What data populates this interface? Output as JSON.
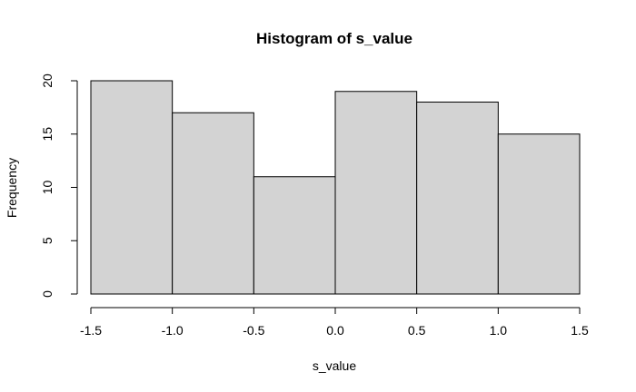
{
  "chart_data": {
    "type": "bar",
    "title": "Histogram of s_value",
    "xlabel": "s_value",
    "ylabel": "Frequency",
    "bins": [
      {
        "x0": -1.5,
        "x1": -1.0,
        "count": 20
      },
      {
        "x0": -1.0,
        "x1": -0.5,
        "count": 17
      },
      {
        "x0": -0.5,
        "x1": 0.0,
        "count": 11
      },
      {
        "x0": 0.0,
        "x1": 0.5,
        "count": 19
      },
      {
        "x0": 0.5,
        "x1": 1.0,
        "count": 18
      },
      {
        "x0": 1.0,
        "x1": 1.5,
        "count": 15
      }
    ],
    "xlim": [
      -1.5,
      1.5
    ],
    "ylim": [
      0,
      20
    ],
    "xticks": [
      -1.5,
      -1.0,
      -0.5,
      0.0,
      0.5,
      1.0,
      1.5
    ],
    "xtick_labels": [
      "-1.5",
      "-1.0",
      "-0.5",
      "0.0",
      "0.5",
      "1.0",
      "1.5"
    ],
    "yticks": [
      0,
      5,
      10,
      15,
      20
    ],
    "ytick_labels": [
      "0",
      "5",
      "10",
      "15",
      "20"
    ],
    "bar_color": "#d3d3d3",
    "edge_color": "#000000",
    "grid": false
  }
}
